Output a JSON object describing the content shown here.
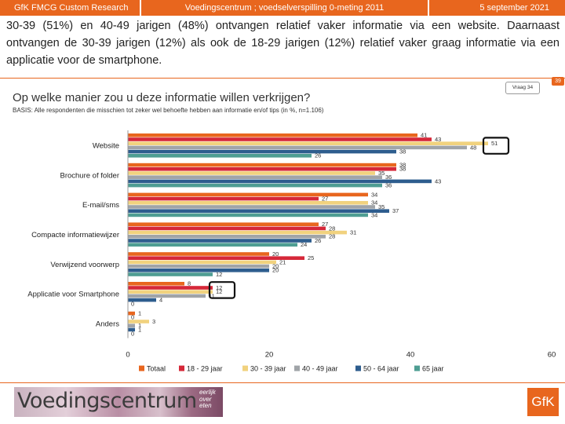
{
  "header": {
    "left": "GfK FMCG Custom Research",
    "center": "Voedingscentrum ; voedselverspilling 0-meting 2011",
    "right": "5 september 2021"
  },
  "headline": "30-39 (51%) en 40-49 jarigen (48%) ontvangen relatief vaker informatie via een website. Daarnaast ontvangen de 30-39 jarigen (12%) als ook de 18-29 jarigen (12%) relatief vaker graag informatie via een applicatie voor de smartphone.",
  "question": "Op welke manier zou u deze informatie willen verkrijgen?",
  "basis": "BASIS: Alle respondenten die misschien tot zeker wel behoefte hebben aan informatie en/of tips (in %, n=1.106)",
  "vraag": "Vraag 34",
  "page_number": "39",
  "footer": {
    "logo_text": "Voedingscentrum",
    "logo_tagline": [
      "eerlijk",
      "over",
      "eten"
    ],
    "gfk": "GfK"
  },
  "colors": {
    "accent": "#e8661e"
  },
  "chart_data": {
    "type": "bar",
    "orientation": "horizontal",
    "categories": [
      "Website",
      "Brochure of folder",
      "E-mail/sms",
      "Compacte informatiewijzer",
      "Verwijzend voorwerp",
      "Applicatie voor Smartphone",
      "Anders"
    ],
    "series": [
      {
        "name": "Totaal",
        "color": "#e8661e",
        "values": [
          41,
          38,
          34,
          27,
          20,
          8,
          1
        ]
      },
      {
        "name": "18 - 29 jaar",
        "color": "#d62839",
        "values": [
          43,
          38,
          27,
          28,
          25,
          12,
          0
        ]
      },
      {
        "name": "30 - 39 jaar",
        "color": "#f1d27e",
        "values": [
          51,
          35,
          34,
          31,
          21,
          12,
          3
        ]
      },
      {
        "name": "40 - 49 jaar",
        "color": "#a0a4a8",
        "values": [
          48,
          36,
          35,
          28,
          20,
          11,
          1
        ]
      },
      {
        "name": "50 - 64 jaar",
        "color": "#2e5d8e",
        "values": [
          38,
          43,
          37,
          26,
          20,
          4,
          1
        ]
      },
      {
        "name": "65 jaar",
        "color": "#4f9e93",
        "values": [
          26,
          36,
          34,
          24,
          12,
          0,
          0
        ]
      }
    ],
    "xlim": [
      0,
      60
    ],
    "xticks": [
      0,
      20,
      40,
      60
    ],
    "highlighted": [
      {
        "category": "Website",
        "series": [
          "30 - 39 jaar",
          "40 - 49 jaar"
        ]
      },
      {
        "category": "Applicatie voor Smartphone",
        "series": [
          "18 - 29 jaar",
          "30 - 39 jaar"
        ]
      }
    ],
    "legend_position": "bottom",
    "grid": false
  }
}
